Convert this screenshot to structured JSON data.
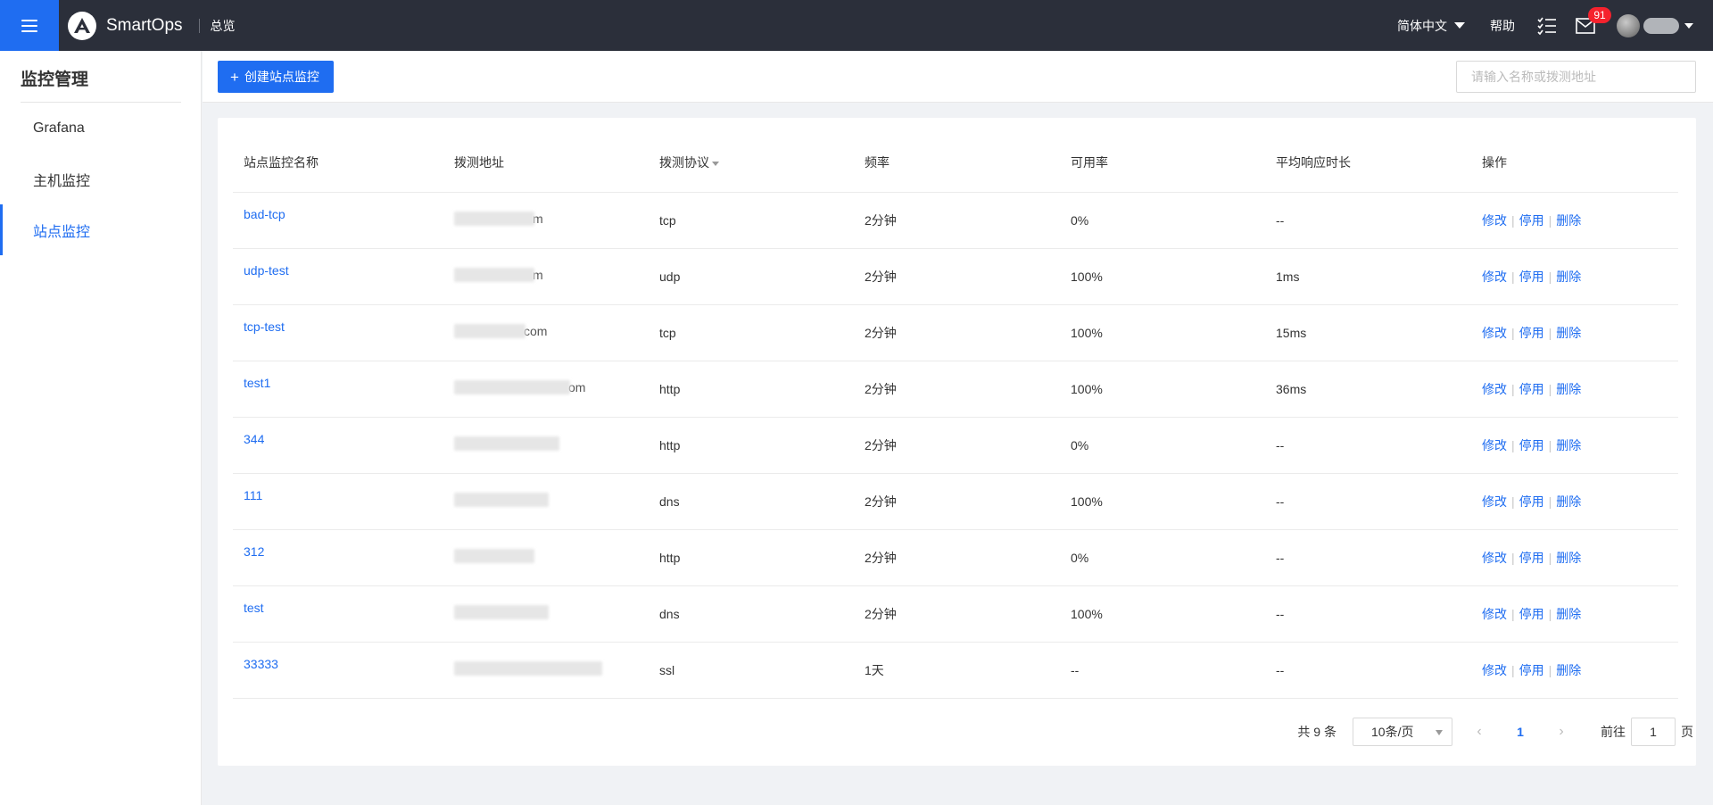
{
  "header": {
    "brand": "SmartOps",
    "breadcrumb": "总览",
    "language": "简体中文",
    "help": "帮助",
    "mail_badge": "91"
  },
  "sidebar": {
    "title": "监控管理",
    "items": [
      {
        "label": "Grafana"
      },
      {
        "label": "主机监控"
      },
      {
        "label": "站点监控"
      }
    ]
  },
  "toolbar": {
    "create_label": "创建站点监控",
    "search_placeholder": "请输入名称或拨测地址"
  },
  "table": {
    "columns": [
      "站点监控名称",
      "拨测地址",
      "拨测协议",
      "频率",
      "可用率",
      "平均响应时长",
      "操作"
    ],
    "rows": [
      {
        "name": "bad-tcp",
        "address_tail": "m",
        "protocol": "tcp",
        "frequency": "2分钟",
        "availability": "0%",
        "avg_response": "--"
      },
      {
        "name": "udp-test",
        "address_tail": "m",
        "protocol": "udp",
        "frequency": "2分钟",
        "availability": "100%",
        "avg_response": "1ms"
      },
      {
        "name": "tcp-test",
        "address_tail": "com",
        "protocol": "tcp",
        "frequency": "2分钟",
        "availability": "100%",
        "avg_response": "15ms"
      },
      {
        "name": "test1",
        "address_tail": "om",
        "protocol": "http",
        "frequency": "2分钟",
        "availability": "100%",
        "avg_response": "36ms"
      },
      {
        "name": "344",
        "address_tail": "",
        "protocol": "http",
        "frequency": "2分钟",
        "availability": "0%",
        "avg_response": "--"
      },
      {
        "name": "111",
        "address_tail": "",
        "protocol": "dns",
        "frequency": "2分钟",
        "availability": "100%",
        "avg_response": "--"
      },
      {
        "name": "312",
        "address_tail": "",
        "protocol": "http",
        "frequency": "2分钟",
        "availability": "0%",
        "avg_response": "--"
      },
      {
        "name": "test",
        "address_tail": "",
        "protocol": "dns",
        "frequency": "2分钟",
        "availability": "100%",
        "avg_response": "--"
      },
      {
        "name": "33333",
        "address_tail": "",
        "protocol": "ssl",
        "frequency": "1天",
        "availability": "--",
        "avg_response": "--"
      }
    ],
    "actions": {
      "edit": "修改",
      "disable": "停用",
      "delete": "删除"
    }
  },
  "pagination": {
    "total": "共 9 条",
    "page_size": "10条/页",
    "current_page": "1",
    "goto_label": "前往",
    "goto_value": "1",
    "page_suffix": "页"
  }
}
